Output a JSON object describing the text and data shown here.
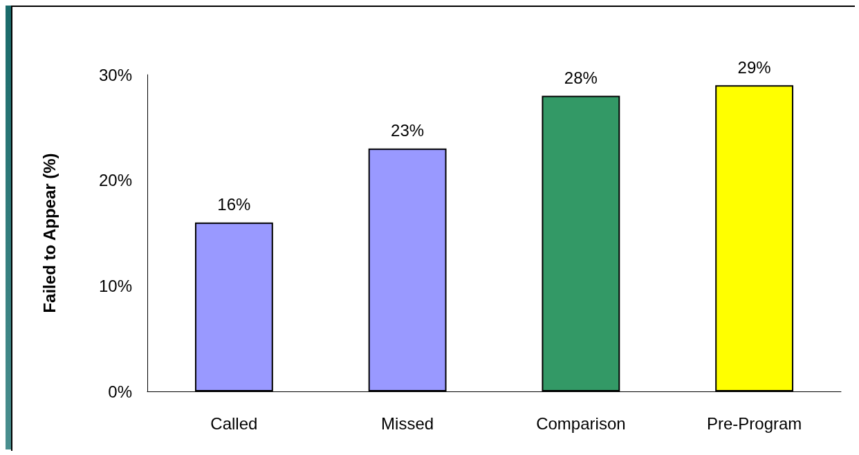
{
  "chart_data": {
    "type": "bar",
    "ylabel": "Failed to Appear (%)",
    "categories": [
      "Called",
      "Missed",
      "Comparison",
      "Pre-Program"
    ],
    "values": [
      16,
      23,
      28,
      29
    ],
    "colors": [
      "#9999ff",
      "#9999ff",
      "#339966",
      "#ffff00"
    ],
    "value_labels": [
      "16%",
      "23%",
      "28%",
      "29%"
    ],
    "ylim": [
      0,
      30
    ],
    "yticks": [
      {
        "value": 0,
        "label": "0%"
      },
      {
        "value": 10,
        "label": "10%"
      },
      {
        "value": 20,
        "label": "20%"
      },
      {
        "value": 30,
        "label": "30%"
      }
    ],
    "grid": false
  }
}
